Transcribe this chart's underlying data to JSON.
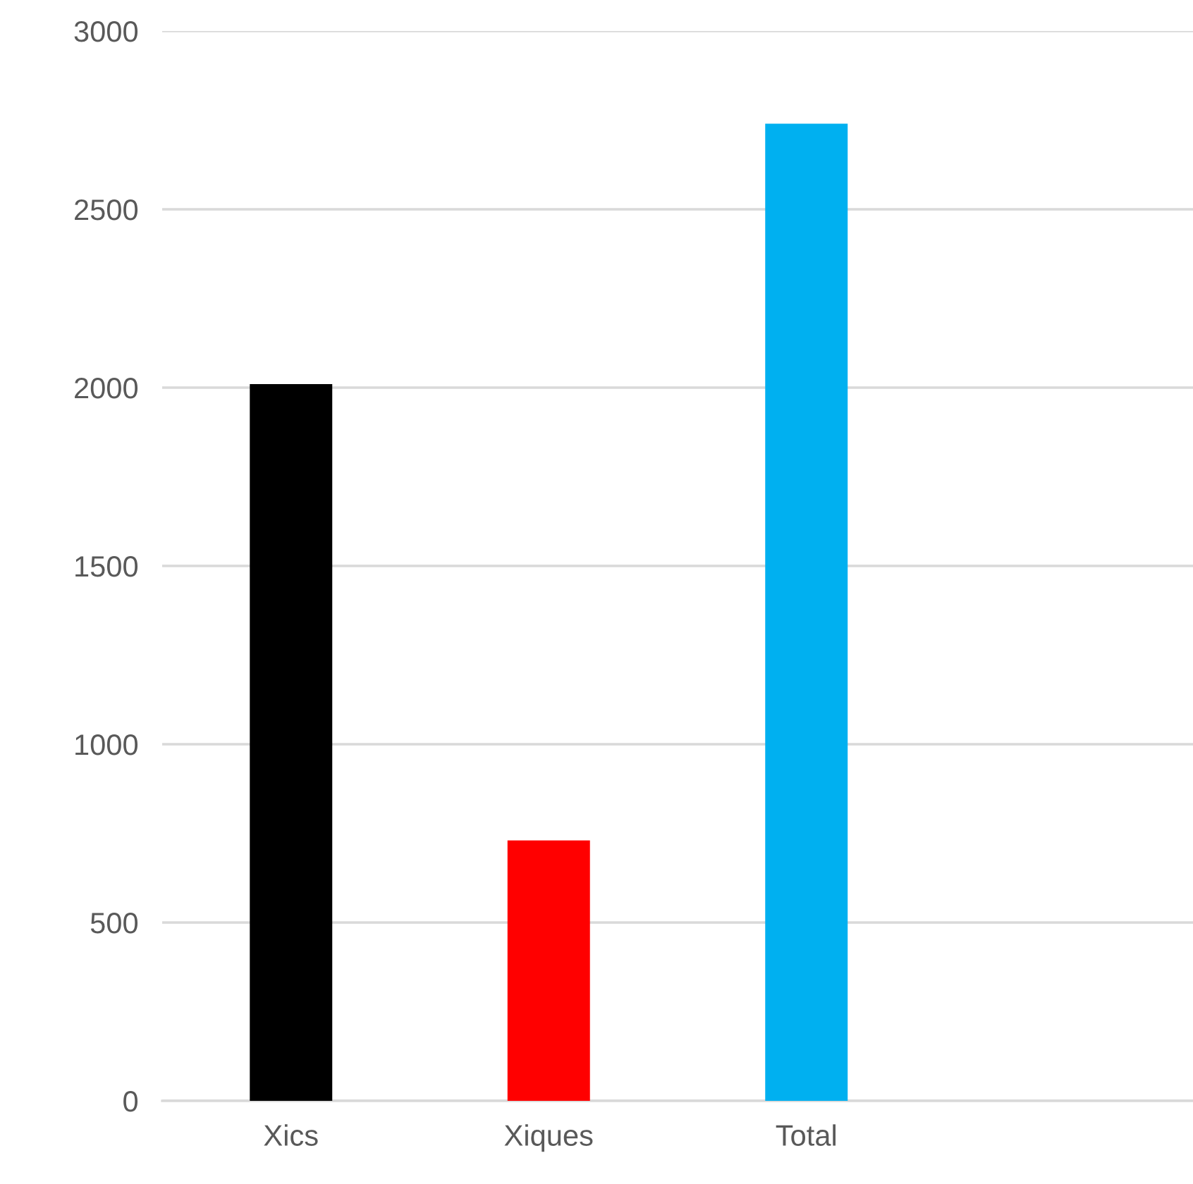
{
  "chart_data": {
    "type": "bar",
    "categories": [
      "Xics",
      "Xiques",
      "Total",
      null
    ],
    "values": [
      2010,
      730,
      2740,
      null
    ],
    "colors": [
      "#000000",
      "#ff0000",
      "#00b0f0",
      "#00b0f0"
    ],
    "ylim": [
      0,
      3000
    ],
    "yticks": [
      0,
      500,
      1000,
      1500,
      2000,
      2500,
      3000
    ],
    "grid": "y"
  }
}
